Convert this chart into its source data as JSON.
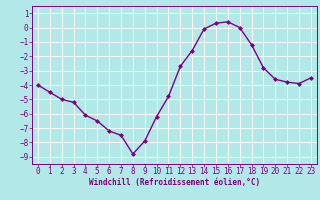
{
  "x": [
    0,
    1,
    2,
    3,
    4,
    5,
    6,
    7,
    8,
    9,
    10,
    11,
    12,
    13,
    14,
    15,
    16,
    17,
    18,
    19,
    20,
    21,
    22,
    23
  ],
  "y": [
    -4.0,
    -4.5,
    -5.0,
    -5.2,
    -6.1,
    -6.5,
    -7.2,
    -7.5,
    -8.8,
    -7.9,
    -6.2,
    -4.8,
    -2.7,
    -1.6,
    -0.1,
    0.3,
    0.4,
    0.0,
    -1.2,
    -2.8,
    -3.6,
    -3.8,
    -3.9,
    -3.5
  ],
  "line_color": "#800080",
  "marker": "D",
  "marker_size": 2.0,
  "line_width": 1.0,
  "bg_color": "#b3e8e8",
  "grid_color": "#ffffff",
  "xlabel": "Windchill (Refroidissement éolien,°C)",
  "xlim": [
    -0.5,
    23.5
  ],
  "ylim": [
    -9.5,
    1.5
  ],
  "yticks": [
    1,
    0,
    -1,
    -2,
    -3,
    -4,
    -5,
    -6,
    -7,
    -8,
    -9
  ],
  "xticks": [
    0,
    1,
    2,
    3,
    4,
    5,
    6,
    7,
    8,
    9,
    10,
    11,
    12,
    13,
    14,
    15,
    16,
    17,
    18,
    19,
    20,
    21,
    22,
    23
  ],
  "xlabel_fontsize": 5.5,
  "tick_fontsize": 5.5
}
